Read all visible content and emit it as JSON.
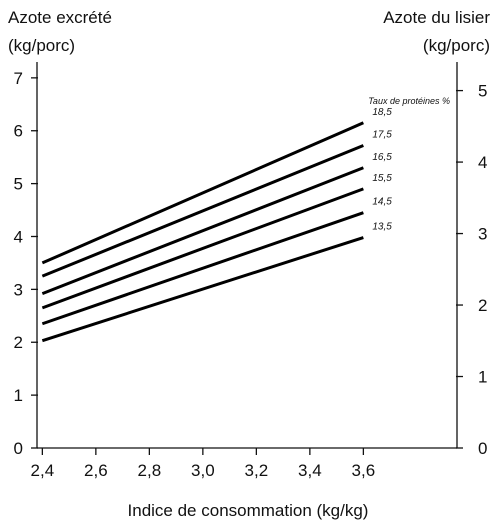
{
  "chart_data": {
    "type": "line",
    "xlabel": "Indice de consommation (kg/kg)",
    "ylabel_left": "Azote excrété",
    "ylabel_left_unit": "(kg/porc)",
    "ylabel_right": "Azote du lisier",
    "ylabel_right_unit": "(kg/porc)",
    "legend_title": "Taux de protéines %",
    "x_ticks": [
      "2,4",
      "2,6",
      "2,8",
      "3,0",
      "3,2",
      "3,4",
      "3,6"
    ],
    "x_tick_values": [
      2.4,
      2.6,
      2.8,
      3.0,
      3.2,
      3.4,
      3.6
    ],
    "xlim": [
      2.38,
      3.95
    ],
    "y_left_ticks": [
      "0",
      "1",
      "2",
      "3",
      "4",
      "5",
      "6",
      "7"
    ],
    "y_left_tick_values": [
      0,
      1,
      2,
      3,
      4,
      5,
      6,
      7
    ],
    "y_left_lim": [
      0,
      7.3
    ],
    "y_right_ticks": [
      "0",
      "1",
      "2",
      "3",
      "4",
      "5"
    ],
    "y_right_tick_values": [
      0,
      1,
      2,
      3,
      4,
      5
    ],
    "y_right_lim": [
      0,
      5.4
    ],
    "grid": false,
    "series": [
      {
        "name": "18,5",
        "x": [
          2.4,
          3.6
        ],
        "y": [
          3.5,
          6.15
        ]
      },
      {
        "name": "17,5",
        "x": [
          2.4,
          3.6
        ],
        "y": [
          3.25,
          5.72
        ]
      },
      {
        "name": "16,5",
        "x": [
          2.4,
          3.6
        ],
        "y": [
          2.92,
          5.3
        ]
      },
      {
        "name": "15,5",
        "x": [
          2.4,
          3.6
        ],
        "y": [
          2.65,
          4.9
        ]
      },
      {
        "name": "14,5",
        "x": [
          2.4,
          3.6
        ],
        "y": [
          2.35,
          4.45
        ]
      },
      {
        "name": "13,5",
        "x": [
          2.4,
          3.6
        ],
        "y": [
          2.03,
          3.98
        ]
      }
    ]
  }
}
